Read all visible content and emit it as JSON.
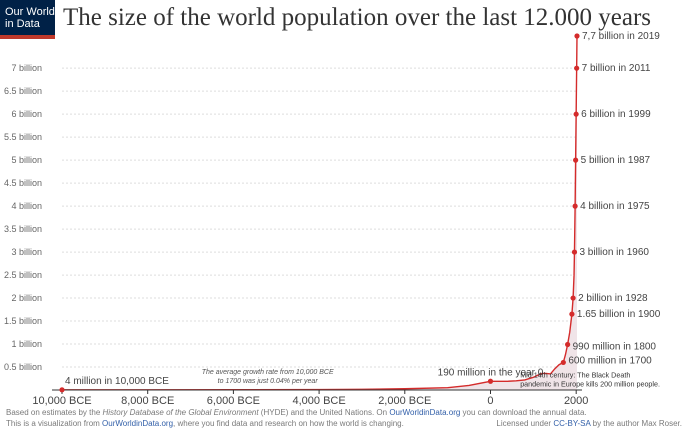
{
  "logo": {
    "line1": "Our World",
    "line2": "in Data",
    "bar_color": "#c0392b"
  },
  "chart_data": {
    "type": "line",
    "title": "The size of the world population over the last 12.000 years",
    "xlabel": "",
    "ylabel": "",
    "xlim": [
      -10000,
      2019
    ],
    "ylim": [
      0,
      7.7
    ],
    "x_ticks": [
      {
        "value": -10000,
        "label": "10,000 BCE"
      },
      {
        "value": -8000,
        "label": "8,000 BCE"
      },
      {
        "value": -6000,
        "label": "6,000 BCE"
      },
      {
        "value": -4000,
        "label": "4,000 BCE"
      },
      {
        "value": -2000,
        "label": "2,000 BCE"
      },
      {
        "value": 0,
        "label": "0"
      },
      {
        "value": 2000,
        "label": "2000"
      }
    ],
    "y_ticks": [
      {
        "value": 0.5,
        "label": "0.5 billion"
      },
      {
        "value": 1,
        "label": "1 billion"
      },
      {
        "value": 1.5,
        "label": "1.5 billion"
      },
      {
        "value": 2,
        "label": "2 billion"
      },
      {
        "value": 2.5,
        "label": "2.5 billion"
      },
      {
        "value": 3,
        "label": "3 billion"
      },
      {
        "value": 3.5,
        "label": "3.5 billion"
      },
      {
        "value": 4,
        "label": "4 billion"
      },
      {
        "value": 4.5,
        "label": "4.5 billion"
      },
      {
        "value": 5,
        "label": "5 billion"
      },
      {
        "value": 5.5,
        "label": "5.5 billion"
      },
      {
        "value": 6,
        "label": "6 billion"
      },
      {
        "value": 6.5,
        "label": "6.5 billion"
      },
      {
        "value": 7,
        "label": "7 billion"
      }
    ],
    "grid": "horizontal",
    "colors": {
      "line": "#d42b2b",
      "area": "#f0e4e8",
      "grid": "#dddddd",
      "text": "#444444",
      "axis": "#333333",
      "tick": "#666666"
    },
    "series": [
      {
        "values": [
          [
            -10000,
            0.004
          ],
          [
            -8000,
            0.005
          ],
          [
            -6000,
            0.007
          ],
          [
            -4000,
            0.009
          ],
          [
            -3000,
            0.014
          ],
          [
            -2000,
            0.027
          ],
          [
            -1000,
            0.05
          ],
          [
            -500,
            0.1
          ],
          [
            0,
            0.19
          ],
          [
            200,
            0.19
          ],
          [
            400,
            0.19
          ],
          [
            600,
            0.2
          ],
          [
            800,
            0.22
          ],
          [
            1000,
            0.275
          ],
          [
            1100,
            0.32
          ],
          [
            1200,
            0.36
          ],
          [
            1300,
            0.36
          ],
          [
            1400,
            0.35
          ],
          [
            1500,
            0.46
          ],
          [
            1600,
            0.55
          ],
          [
            1700,
            0.6
          ],
          [
            1750,
            0.77
          ],
          [
            1800,
            0.99
          ],
          [
            1850,
            1.26
          ],
          [
            1900,
            1.65
          ],
          [
            1928,
            2.0
          ],
          [
            1950,
            2.5
          ],
          [
            1960,
            3.0
          ],
          [
            1975,
            4.0
          ],
          [
            1987,
            5.0
          ],
          [
            1999,
            6.0
          ],
          [
            2011,
            7.0
          ],
          [
            2019,
            7.7
          ]
        ]
      }
    ],
    "markers": [
      {
        "x": -10000,
        "y": 0.004
      },
      {
        "x": 0,
        "y": 0.19
      },
      {
        "x": 1700,
        "y": 0.6
      },
      {
        "x": 1800,
        "y": 0.99
      },
      {
        "x": 1900,
        "y": 1.65
      },
      {
        "x": 1928,
        "y": 2.0
      },
      {
        "x": 1960,
        "y": 3.0
      },
      {
        "x": 1975,
        "y": 4.0
      },
      {
        "x": 1987,
        "y": 5.0
      },
      {
        "x": 1999,
        "y": 6.0
      },
      {
        "x": 2011,
        "y": 7.0
      },
      {
        "x": 2019,
        "y": 7.7
      }
    ],
    "labels": [
      {
        "x": 2019,
        "y": 7.7,
        "text": "7,7 billion in 2019"
      },
      {
        "x": 2011,
        "y": 7.0,
        "text": "7 billion in 2011"
      },
      {
        "x": 1999,
        "y": 6.0,
        "text": "6 billion in 1999"
      },
      {
        "x": 1987,
        "y": 5.0,
        "text": "5 billion in 1987"
      },
      {
        "x": 1975,
        "y": 4.0,
        "text": "4 billion in 1975"
      },
      {
        "x": 1960,
        "y": 3.0,
        "text": "3 billion in 1960"
      },
      {
        "x": 1928,
        "y": 2.0,
        "text": "2 billion in 1928"
      },
      {
        "x": 1900,
        "y": 1.65,
        "text": "1.65 billion in 1900"
      },
      {
        "x": 1800,
        "y": 0.99,
        "text": "990 million in 1800"
      },
      {
        "x": 1700,
        "y": 0.6,
        "text": "600 million in 1700"
      },
      {
        "x": 0,
        "y": 0.19,
        "text": "190 million in the year 0"
      },
      {
        "x": -10000,
        "y": 0.004,
        "text": "4 million in 10,000 BCE"
      }
    ],
    "annotations": [
      {
        "x": -5200,
        "y": 0.22,
        "lines": [
          "The average growth rate from 10,000 BCE",
          "to 1700 was just  0.04% per year"
        ]
      },
      {
        "x": 1300,
        "y": 0.36,
        "lines": [
          "Mid 14th century: The Black Death",
          "pandemic in Europe kills 200 million people."
        ]
      }
    ]
  },
  "footer": {
    "line1_a": "Based on estimates by the ",
    "line1_b": "History Database of the Global Environment",
    "line1_c": " (HYDE) and the United Nations. On ",
    "line1_d": "OurWorldinData.org",
    "line1_e": " you can download the annual data.",
    "line2_a": "This is a visualization from ",
    "line2_b": "OurWorldinData.org",
    "line2_c": ", where you find data and research on how the world is changing.",
    "license_a": "Licensed under ",
    "license_b": "CC-BY-SA",
    "license_c": " by the author Max Roser."
  }
}
